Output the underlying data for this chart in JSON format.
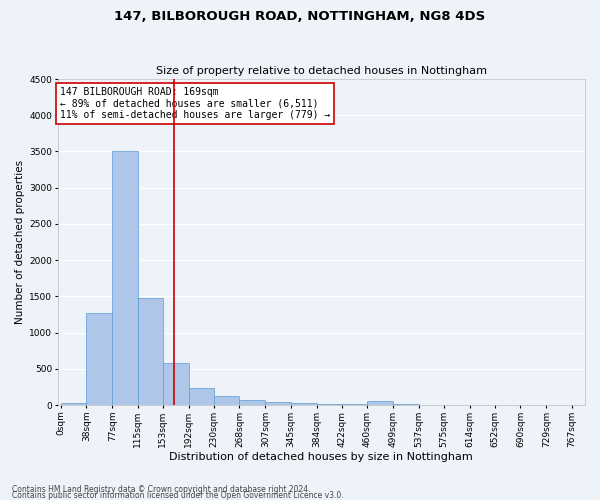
{
  "title1": "147, BILBOROUGH ROAD, NOTTINGHAM, NG8 4DS",
  "title2": "Size of property relative to detached houses in Nottingham",
  "xlabel": "Distribution of detached houses by size in Nottingham",
  "ylabel": "Number of detached properties",
  "footnote1": "Contains HM Land Registry data © Crown copyright and database right 2024.",
  "footnote2": "Contains public sector information licensed under the Open Government Licence v3.0.",
  "annotation_line1": "147 BILBOROUGH ROAD: 169sqm",
  "annotation_line2": "← 89% of detached houses are smaller (6,511)",
  "annotation_line3": "11% of semi-detached houses are larger (779) →",
  "bar_edges": [
    0,
    38,
    77,
    115,
    153,
    192,
    230,
    268,
    307,
    345,
    384,
    422,
    460,
    499,
    537,
    575,
    614,
    652,
    690,
    729,
    767
  ],
  "bar_heights": [
    30,
    1270,
    3500,
    1480,
    580,
    240,
    125,
    75,
    45,
    25,
    15,
    10,
    50,
    10,
    0,
    0,
    0,
    0,
    0,
    0
  ],
  "bar_color": "#aec6e8",
  "bar_edgecolor": "#5b9bd5",
  "vline_x": 169,
  "vline_color": "#cc0000",
  "ylim": [
    0,
    4500
  ],
  "yticks": [
    0,
    500,
    1000,
    1500,
    2000,
    2500,
    3000,
    3500,
    4000,
    4500
  ],
  "xtick_labels": [
    "0sqm",
    "38sqm",
    "77sqm",
    "115sqm",
    "153sqm",
    "192sqm",
    "230sqm",
    "268sqm",
    "307sqm",
    "345sqm",
    "384sqm",
    "422sqm",
    "460sqm",
    "499sqm",
    "537sqm",
    "575sqm",
    "614sqm",
    "652sqm",
    "690sqm",
    "729sqm",
    "767sqm"
  ],
  "background_color": "#eef2f9",
  "grid_color": "#ffffff",
  "annotation_box_color": "#ffffff",
  "annotation_box_edgecolor": "#cc0000",
  "title1_fontsize": 9.5,
  "title2_fontsize": 8,
  "ylabel_fontsize": 7.5,
  "xlabel_fontsize": 8,
  "tick_fontsize": 6.5,
  "annot_fontsize": 7,
  "footnote_fontsize": 5.5
}
